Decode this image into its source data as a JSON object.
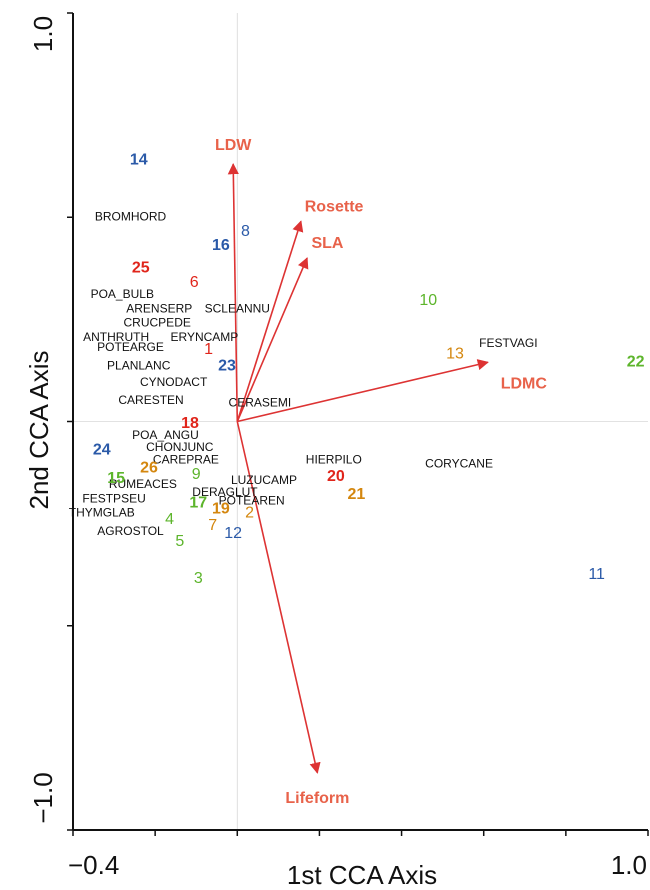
{
  "chart_data": {
    "type": "scatter",
    "title": "",
    "xlabel": "1st CCA Axis",
    "ylabel": "2nd CCA Axis",
    "xlim": [
      -0.4,
      1.0
    ],
    "ylim": [
      -1.0,
      1.0
    ],
    "x_tick_labels": [
      "−0.4",
      "1.0"
    ],
    "y_tick_labels": [
      "1.0",
      "−1.0"
    ],
    "grid": false,
    "reference_lines": "x=0, y=0",
    "colors": {
      "red": "#e0251b",
      "orange": "#d4870f",
      "green": "#5db52c",
      "blue": "#2b5aa8",
      "arrow": "#dd3333",
      "arrow_label": "#e8624a"
    },
    "arrows": [
      {
        "label": "LDW",
        "x": -0.01,
        "y": 0.63
      },
      {
        "label": "Rosette",
        "x": 0.155,
        "y": 0.49
      },
      {
        "label": "SLA",
        "x": 0.17,
        "y": 0.4
      },
      {
        "label": "LDMC",
        "x": 0.61,
        "y": 0.145
      },
      {
        "label": "Lifeform",
        "x": 0.195,
        "y": -0.86
      }
    ],
    "species": [
      {
        "label": "BROMHORD",
        "x": -0.26,
        "y": 0.5
      },
      {
        "label": "POA_BULB",
        "x": -0.28,
        "y": 0.31
      },
      {
        "label": "ARENSERP",
        "x": -0.19,
        "y": 0.275
      },
      {
        "label": "SCLEANNU",
        "x": 0.0,
        "y": 0.275
      },
      {
        "label": "CRUCPEDE",
        "x": -0.195,
        "y": 0.24
      },
      {
        "label": "ANTHRUTH",
        "x": -0.295,
        "y": 0.205
      },
      {
        "label": "ERYNCAMP",
        "x": -0.08,
        "y": 0.205
      },
      {
        "label": "POTEARGE",
        "x": -0.26,
        "y": 0.18
      },
      {
        "label": "PLANLANC",
        "x": -0.24,
        "y": 0.135
      },
      {
        "label": "CYNODACT",
        "x": -0.155,
        "y": 0.095
      },
      {
        "label": "CARESTEN",
        "x": -0.21,
        "y": 0.05
      },
      {
        "label": "CERASEMI",
        "x": 0.055,
        "y": 0.045
      },
      {
        "label": "POA_ANGU",
        "x": -0.175,
        "y": -0.035
      },
      {
        "label": "CHONJUNC",
        "x": -0.14,
        "y": -0.065
      },
      {
        "label": "CAREPRAE",
        "x": -0.125,
        "y": -0.095
      },
      {
        "label": "HIERPILO",
        "x": 0.235,
        "y": -0.095
      },
      {
        "label": "CORYCANE",
        "x": 0.54,
        "y": -0.105
      },
      {
        "label": "LUZUCAMP",
        "x": 0.065,
        "y": -0.145
      },
      {
        "label": "RUMEACES",
        "x": -0.23,
        "y": -0.155
      },
      {
        "label": "DERAGLUT",
        "x": -0.03,
        "y": -0.175
      },
      {
        "label": "FESTPSEU",
        "x": -0.3,
        "y": -0.19
      },
      {
        "label": "POTEAREN",
        "x": 0.035,
        "y": -0.195
      },
      {
        "label": "THYMGLAB",
        "x": -0.33,
        "y": -0.225
      },
      {
        "label": "AGROSTOL",
        "x": -0.26,
        "y": -0.27
      },
      {
        "label": "FESTVAGI",
        "x": 0.66,
        "y": 0.19
      }
    ],
    "sites": [
      {
        "label": "14",
        "x": -0.24,
        "y": 0.64,
        "color": "blue",
        "bold": true
      },
      {
        "label": "8",
        "x": 0.02,
        "y": 0.465,
        "color": "blue",
        "bold": false
      },
      {
        "label": "16",
        "x": -0.04,
        "y": 0.43,
        "color": "blue",
        "bold": true
      },
      {
        "label": "25",
        "x": -0.235,
        "y": 0.375,
        "color": "red",
        "bold": true
      },
      {
        "label": "6",
        "x": -0.105,
        "y": 0.34,
        "color": "red",
        "bold": false
      },
      {
        "label": "1",
        "x": -0.07,
        "y": 0.175,
        "color": "red",
        "bold": false
      },
      {
        "label": "23",
        "x": -0.025,
        "y": 0.135,
        "color": "blue",
        "bold": true
      },
      {
        "label": "18",
        "x": -0.115,
        "y": -0.005,
        "color": "red",
        "bold": true
      },
      {
        "label": "24",
        "x": -0.33,
        "y": -0.07,
        "color": "blue",
        "bold": true
      },
      {
        "label": "9",
        "x": -0.1,
        "y": -0.13,
        "color": "green",
        "bold": false
      },
      {
        "label": "26",
        "x": -0.215,
        "y": -0.115,
        "color": "orange",
        "bold": true
      },
      {
        "label": "15",
        "x": -0.295,
        "y": -0.14,
        "color": "green",
        "bold": true
      },
      {
        "label": "20",
        "x": 0.24,
        "y": -0.135,
        "color": "red",
        "bold": true
      },
      {
        "label": "21",
        "x": 0.29,
        "y": -0.18,
        "color": "orange",
        "bold": true
      },
      {
        "label": "17",
        "x": -0.095,
        "y": -0.2,
        "color": "green",
        "bold": true
      },
      {
        "label": "19",
        "x": -0.04,
        "y": -0.215,
        "color": "orange",
        "bold": true
      },
      {
        "label": "2",
        "x": 0.03,
        "y": -0.225,
        "color": "orange",
        "bold": false
      },
      {
        "label": "4",
        "x": -0.165,
        "y": -0.24,
        "color": "green",
        "bold": false
      },
      {
        "label": "7",
        "x": -0.06,
        "y": -0.255,
        "color": "orange",
        "bold": false
      },
      {
        "label": "12",
        "x": -0.01,
        "y": -0.275,
        "color": "blue",
        "bold": false
      },
      {
        "label": "5",
        "x": -0.14,
        "y": -0.295,
        "color": "green",
        "bold": false
      },
      {
        "label": "3",
        "x": -0.095,
        "y": -0.385,
        "color": "green",
        "bold": false
      },
      {
        "label": "10",
        "x": 0.465,
        "y": 0.295,
        "color": "green",
        "bold": false
      },
      {
        "label": "13",
        "x": 0.53,
        "y": 0.165,
        "color": "orange",
        "bold": false
      },
      {
        "label": "22",
        "x": 0.97,
        "y": 0.145,
        "color": "green",
        "bold": true
      },
      {
        "label": "11",
        "x": 0.875,
        "y": -0.375,
        "color": "blue",
        "bold": false
      }
    ]
  }
}
